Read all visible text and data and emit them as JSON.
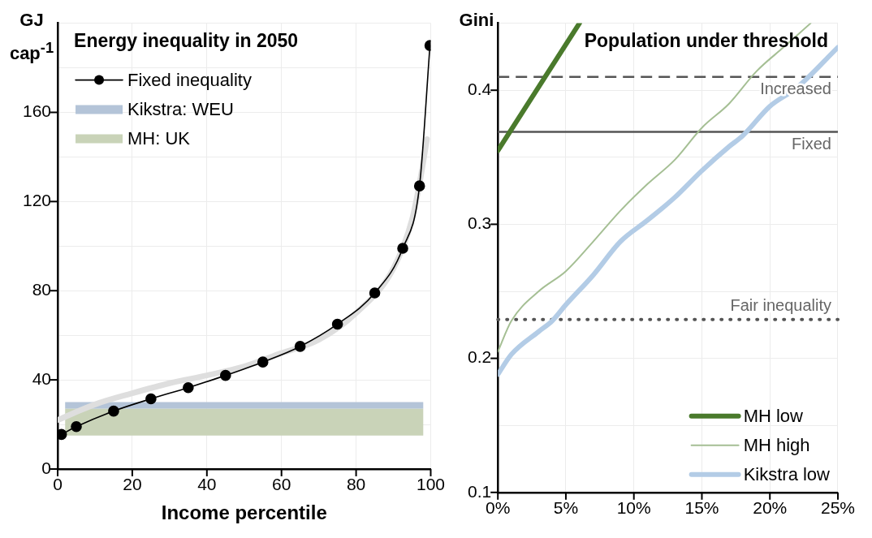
{
  "chart_data": [
    {
      "type": "line",
      "title": "Energy inequality in 2050",
      "xlabel": "Income percentile",
      "ylabel": "GJ cap$^{-1}$",
      "xlim": [
        0,
        100
      ],
      "xticks": [
        0,
        20,
        40,
        60,
        80,
        100
      ],
      "ylim": [
        0,
        200
      ],
      "yticks": [
        0,
        {
          "value": 20,
          "label": null
        },
        40,
        {
          "value": 60,
          "label": null
        },
        80,
        {
          "value": 100,
          "label": null
        },
        120,
        {
          "value": 140,
          "label": null
        },
        160,
        {
          "value": 180,
          "label": null
        },
        {
          "value": 200,
          "label": null
        }
      ],
      "grid": true,
      "legend": "top left",
      "bands": [
        {
          "axis": "y",
          "from": 27,
          "to": 30,
          "label": "Kikstra: WEU",
          "color": "#b4c4d8"
        },
        {
          "axis": "y",
          "from": 15,
          "to": 27,
          "label": "MH: UK",
          "color": "#c9d3b8"
        }
      ],
      "series": [
        {
          "name": "Fixed inequality",
          "color": "#000000",
          "marker": "circle",
          "x": [
            1,
            5,
            15,
            25,
            35,
            45,
            55,
            65,
            75,
            85,
            92.5,
            97,
            99.8
          ],
          "values": [
            15.5,
            19,
            26,
            31.5,
            36.5,
            42,
            48,
            55,
            65,
            79,
            99,
            127,
            190
          ]
        },
        {
          "type": "line",
          "color": "#dedede",
          "x": [
            0,
            10,
            20,
            30,
            40,
            50,
            60,
            70,
            80,
            90,
            95,
            97,
            99
          ],
          "values": [
            22,
            29,
            34,
            38.5,
            42,
            46,
            52,
            58,
            70,
            90,
            112,
            128,
            148
          ]
        }
      ]
    },
    {
      "type": "line",
      "title": "Population under threshold",
      "ylabel": "Gini",
      "xlim": [
        0,
        25
      ],
      "xticks": [
        {
          "value": 0,
          "label": "0%"
        },
        {
          "value": 5,
          "label": "5%"
        },
        {
          "value": 10,
          "label": "10%"
        },
        {
          "value": 15,
          "label": "15%"
        },
        {
          "value": 20,
          "label": "20%"
        },
        {
          "value": 25,
          "label": "25%"
        }
      ],
      "ylim": [
        0.1,
        0.45
      ],
      "yticks": [
        0.1,
        {
          "value": 0.15,
          "label": null
        },
        0.2,
        {
          "value": 0.25,
          "label": null
        },
        0.3,
        {
          "value": 0.35,
          "label": null
        },
        0.4,
        {
          "value": 0.45,
          "label": null
        }
      ],
      "grid": true,
      "legend": "bottom right",
      "ref_lines": [
        {
          "axis": "y",
          "value": 0.41,
          "label": "Increased",
          "color": "#555555",
          "line_style": "dashed"
        },
        {
          "axis": "y",
          "value": 0.369,
          "label": "Fixed",
          "color": "#555555",
          "line_style": "solid"
        },
        {
          "axis": "y",
          "value": 0.229,
          "label": "Fair inequality",
          "color": "#555555",
          "line_style": "dotted"
        }
      ],
      "series": [
        {
          "name": "MH low",
          "color": "#4a7a2c",
          "x": [
            0,
            6
          ],
          "values": [
            0.355,
            0.45
          ]
        },
        {
          "name": "MH high",
          "color": "#a5bf94",
          "x": [
            0,
            1,
            3,
            5,
            7,
            9,
            11,
            13,
            15,
            17,
            19,
            21,
            23
          ],
          "values": [
            0.205,
            0.228,
            0.25,
            0.265,
            0.287,
            0.31,
            0.33,
            0.348,
            0.372,
            0.39,
            0.414,
            0.432,
            0.45
          ]
        },
        {
          "name": "Kikstra low",
          "color": "#b3cce6",
          "x": [
            0,
            1,
            3,
            4,
            5,
            7,
            9,
            11,
            13,
            15,
            17,
            18,
            20,
            22,
            25
          ],
          "values": [
            0.188,
            0.203,
            0.22,
            0.228,
            0.24,
            0.262,
            0.287,
            0.303,
            0.32,
            0.34,
            0.358,
            0.366,
            0.388,
            0.402,
            0.432
          ]
        }
      ]
    }
  ]
}
